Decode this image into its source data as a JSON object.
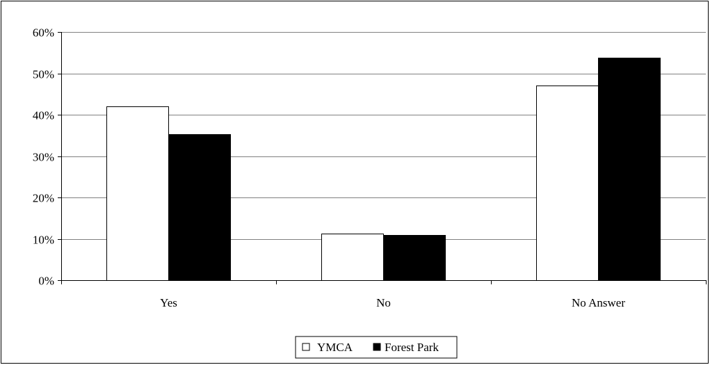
{
  "chart_data": {
    "type": "bar",
    "categories": [
      "Yes",
      "No",
      "No Answer"
    ],
    "series": [
      {
        "name": "YMCA",
        "values": [
          42,
          11.3,
          47
        ],
        "color": "#ffffff"
      },
      {
        "name": "Forest Park",
        "values": [
          35.3,
          11,
          53.8
        ],
        "color": "#000000"
      }
    ],
    "ylim": [
      0,
      60
    ],
    "yticks": [
      0,
      10,
      20,
      30,
      40,
      50,
      60
    ],
    "ytick_labels": [
      "0%",
      "10%",
      "20%",
      "30%",
      "40%",
      "50%",
      "60%"
    ],
    "grid": true,
    "legend_position": "bottom"
  }
}
